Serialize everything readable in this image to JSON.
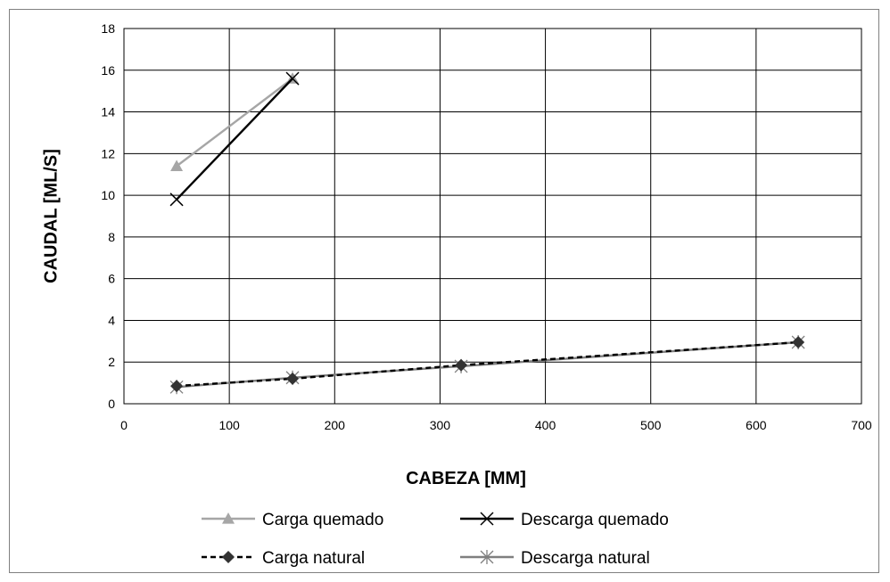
{
  "chart_data": {
    "type": "line",
    "title": "",
    "xlabel": "CABEZA [MM]",
    "ylabel": "CAUDAL [ML/S]",
    "xlim": [
      0,
      700
    ],
    "ylim": [
      0,
      18
    ],
    "x_ticks": [
      0,
      100,
      200,
      300,
      400,
      500,
      600,
      700
    ],
    "y_ticks": [
      0,
      2,
      4,
      6,
      8,
      10,
      12,
      14,
      16,
      18
    ],
    "grid": true,
    "legend_position": "bottom",
    "series": [
      {
        "name": "Carga quemado",
        "color": "#a6a6a6",
        "marker": "triangle",
        "dash": "solid",
        "points": [
          [
            50,
            11.4
          ],
          [
            160,
            15.6
          ]
        ]
      },
      {
        "name": "Descarga quemado",
        "color": "#000000",
        "marker": "x",
        "dash": "solid",
        "points": [
          [
            50,
            9.8
          ],
          [
            160,
            15.6
          ]
        ]
      },
      {
        "name": "Carga natural",
        "color": "#000000",
        "marker": "diamond",
        "dash": "dashed",
        "points": [
          [
            50,
            0.85
          ],
          [
            160,
            1.2
          ],
          [
            320,
            1.85
          ],
          [
            640,
            2.95
          ]
        ]
      },
      {
        "name": "Descarga natural",
        "color": "#7f7f7f",
        "marker": "asterisk",
        "dash": "solid",
        "points": [
          [
            50,
            0.8
          ],
          [
            160,
            1.25
          ],
          [
            320,
            1.8
          ],
          [
            640,
            2.95
          ]
        ]
      }
    ]
  }
}
